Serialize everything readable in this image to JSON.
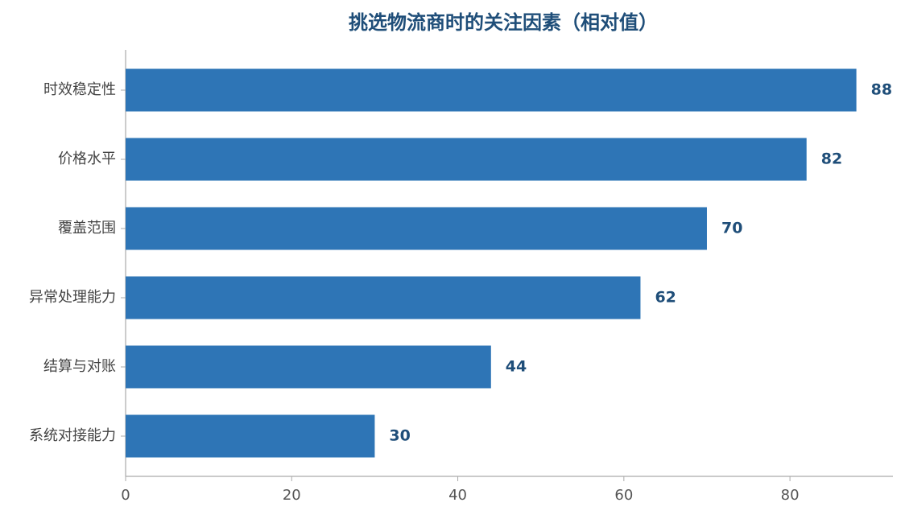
{
  "chart_data": {
    "type": "bar",
    "orientation": "horizontal",
    "title": "挑选物流商时的关注因素（相对值）",
    "categories": [
      "时效稳定性",
      "价格水平",
      "覆盖范围",
      "异常处理能力",
      "结算与对账",
      "系统对接能力"
    ],
    "values": [
      88,
      82,
      70,
      62,
      44,
      30
    ],
    "color": "#2e75b6",
    "xlim": [
      0,
      92.4
    ],
    "xticks": [
      0,
      20,
      40,
      60,
      80
    ],
    "grid": false
  }
}
